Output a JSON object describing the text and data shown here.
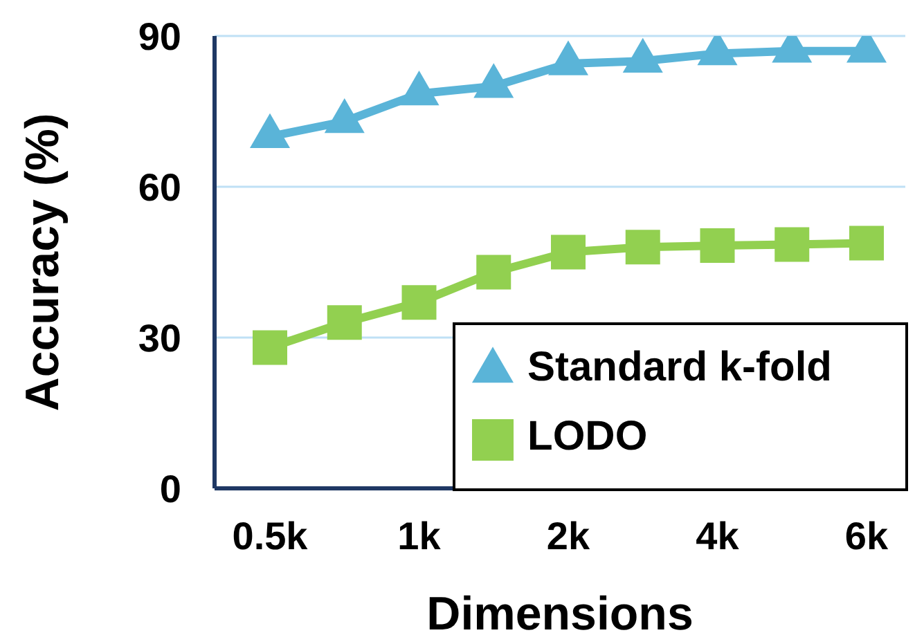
{
  "chart_data": {
    "type": "line",
    "xlabel": "Dimensions",
    "ylabel": "Accuracy (%)",
    "categories": [
      "0.5k",
      null,
      "1k",
      null,
      "2k",
      null,
      "4k",
      null,
      "6k"
    ],
    "series": [
      {
        "name": "Standard k-fold",
        "color": "#5ab4d8",
        "marker": "triangle",
        "values": [
          70,
          73,
          78.5,
          80,
          84.5,
          85,
          86.5,
          87,
          87
        ]
      },
      {
        "name": "LODO",
        "color": "#92d050",
        "marker": "square",
        "values": [
          28,
          33,
          37,
          43,
          47,
          48,
          48.3,
          48.5,
          48.8
        ]
      }
    ],
    "ylim": [
      0,
      90
    ],
    "yticks": [
      0,
      30,
      60,
      90
    ],
    "grid": "y",
    "legend": "bottom right"
  }
}
